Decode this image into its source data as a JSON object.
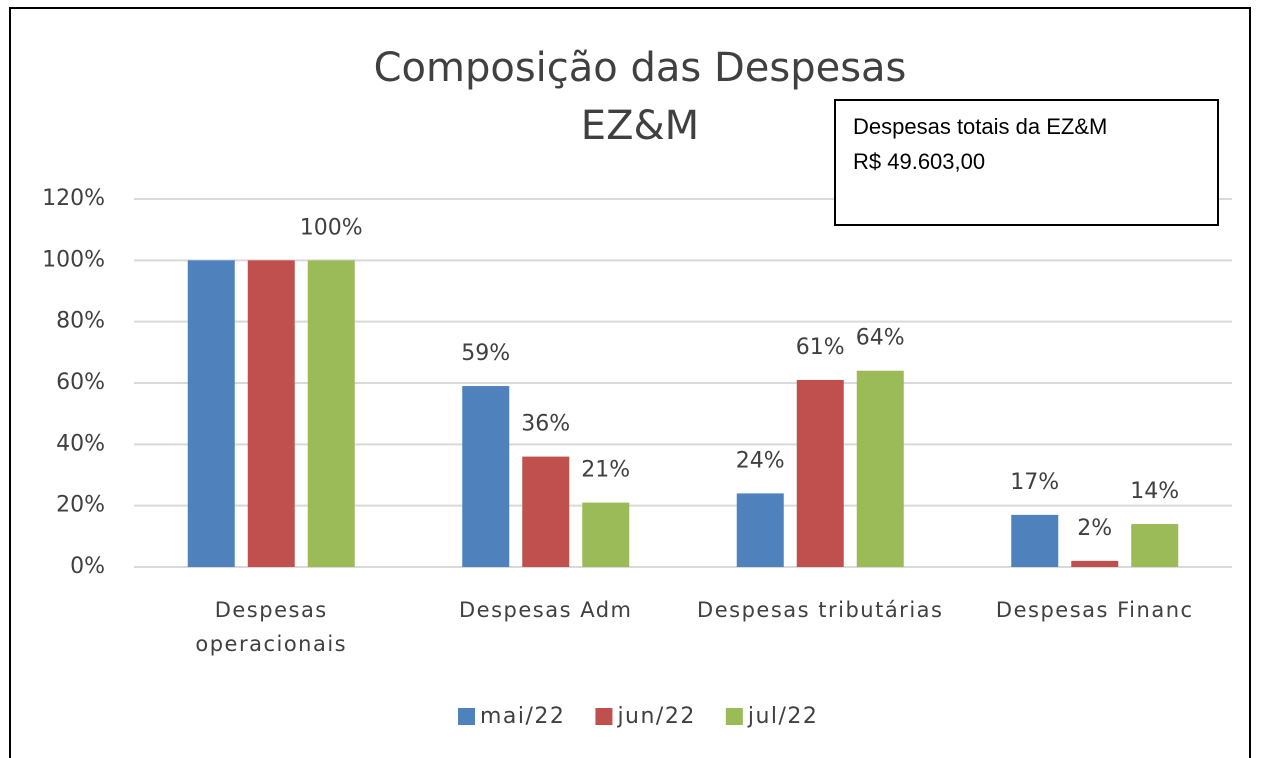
{
  "chart_data": {
    "type": "bar",
    "title": "Composição das Despesas",
    "subtitle": "EZ&M",
    "annotations": [
      "Despesas totais da EZ&M",
      "R$ 49.603,00"
    ],
    "categories": [
      "Despesas operacionais",
      "Despesas Adm",
      "Despesas tributárias",
      "Despesas Financ"
    ],
    "series": [
      {
        "name": "mai/22",
        "color": "#4f81bd",
        "values": [
          100,
          59,
          24,
          17
        ],
        "value_labels": [
          null,
          "59%",
          "24%",
          "17%"
        ]
      },
      {
        "name": "jun/22",
        "color": "#c0504d",
        "values": [
          100,
          36,
          61,
          2
        ],
        "value_labels": [
          null,
          "36%",
          "61%",
          "2%"
        ]
      },
      {
        "name": "jul/22",
        "color": "#9bbb59",
        "values": [
          100,
          21,
          64,
          14
        ],
        "value_labels": [
          "100%",
          "21%",
          "64%",
          "14%"
        ]
      }
    ],
    "ylim": [
      0,
      120
    ],
    "yticks": [
      {
        "value": 0,
        "label": "0%"
      },
      {
        "value": 20,
        "label": "20%"
      },
      {
        "value": 40,
        "label": "40%"
      },
      {
        "value": 60,
        "label": "60%"
      },
      {
        "value": 80,
        "label": "80%"
      },
      {
        "value": 100,
        "label": "100%"
      },
      {
        "value": 120,
        "label": "120%"
      }
    ],
    "grid": true,
    "legend": "bottom"
  }
}
